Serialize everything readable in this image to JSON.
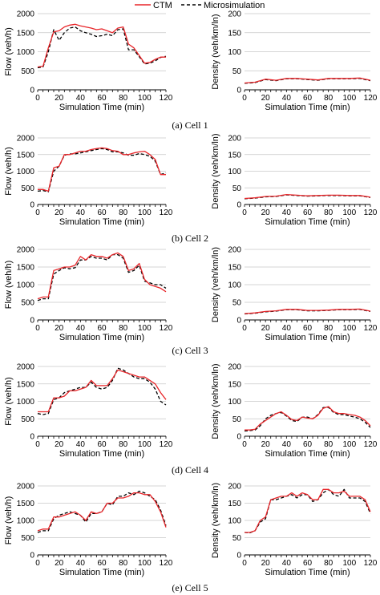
{
  "legend": [
    {
      "name": "CTM",
      "color": "#e8262a",
      "dash": "solid"
    },
    {
      "name": "Microsimulation",
      "color": "#000000",
      "dash": "dashed"
    }
  ],
  "captions": [
    "(a) Cell 1",
    "(b) Cell 2",
    "(c) Cell 3",
    "(d) Cell 4",
    "(e) Cell 5"
  ],
  "chart_data": [
    {
      "type": "line",
      "panel": "Cell 1 flow",
      "xlabel": "Simulation Time (min)",
      "ylabel": "Flow (veh/h)",
      "xlim": [
        0,
        120
      ],
      "ylim": [
        0,
        2000
      ],
      "xticks": [
        0,
        20,
        40,
        60,
        80,
        100,
        120
      ],
      "yticks": [
        0,
        500,
        1000,
        1500,
        2000
      ],
      "x": [
        0,
        5,
        10,
        15,
        20,
        25,
        30,
        35,
        40,
        45,
        50,
        55,
        60,
        65,
        70,
        75,
        80,
        85,
        90,
        95,
        100,
        105,
        110,
        115,
        120
      ],
      "series": [
        {
          "name": "CTM",
          "values": [
            600,
            620,
            1100,
            1520,
            1550,
            1650,
            1700,
            1720,
            1680,
            1650,
            1620,
            1580,
            1600,
            1550,
            1500,
            1620,
            1650,
            1200,
            1100,
            900,
            700,
            720,
            800,
            860,
            860
          ]
        },
        {
          "name": "Microsimulation",
          "values": [
            580,
            600,
            1000,
            1580,
            1300,
            1500,
            1620,
            1650,
            1550,
            1500,
            1460,
            1400,
            1420,
            1460,
            1420,
            1580,
            1600,
            1050,
            1050,
            870,
            680,
            700,
            760,
            850,
            880
          ]
        }
      ]
    },
    {
      "type": "line",
      "panel": "Cell 1 density",
      "xlabel": "Simulation Time (min)",
      "ylabel": "Density (veh/km/ln)",
      "xlim": [
        0,
        120
      ],
      "ylim": [
        0,
        200
      ],
      "xticks": [
        0,
        20,
        40,
        60,
        80,
        100,
        120
      ],
      "yticks": [
        0,
        50,
        100,
        150,
        200
      ],
      "x": [
        0,
        10,
        20,
        30,
        40,
        50,
        60,
        70,
        80,
        90,
        100,
        110,
        120
      ],
      "series": [
        {
          "name": "CTM",
          "values": [
            18,
            20,
            28,
            25,
            30,
            30,
            28,
            26,
            30,
            30,
            30,
            31,
            25
          ]
        },
        {
          "name": "Microsimulation",
          "values": [
            17,
            19,
            27,
            24,
            29,
            29,
            27,
            25,
            29,
            29,
            29,
            30,
            24
          ]
        }
      ]
    },
    {
      "type": "line",
      "panel": "Cell 2 flow",
      "xlabel": "Simulation Time (min)",
      "ylabel": "Flow (veh/h)",
      "xlim": [
        0,
        120
      ],
      "ylim": [
        0,
        2000
      ],
      "xticks": [
        0,
        20,
        40,
        60,
        80,
        100,
        120
      ],
      "yticks": [
        0,
        500,
        1000,
        1500,
        2000
      ],
      "x": [
        0,
        5,
        10,
        15,
        20,
        25,
        30,
        35,
        40,
        45,
        50,
        55,
        60,
        65,
        70,
        75,
        80,
        85,
        90,
        95,
        100,
        105,
        110,
        115,
        120
      ],
      "series": [
        {
          "name": "CTM",
          "values": [
            450,
            450,
            400,
            1100,
            1150,
            1500,
            1500,
            1550,
            1600,
            1600,
            1650,
            1680,
            1700,
            1680,
            1620,
            1600,
            1500,
            1500,
            1550,
            1580,
            1600,
            1500,
            1350,
            900,
            900
          ]
        },
        {
          "name": "Microsimulation",
          "values": [
            400,
            420,
            380,
            1000,
            1150,
            1480,
            1520,
            1520,
            1550,
            1580,
            1620,
            1650,
            1680,
            1650,
            1580,
            1580,
            1550,
            1480,
            1480,
            1530,
            1500,
            1450,
            1300,
            900,
            950
          ]
        }
      ]
    },
    {
      "type": "line",
      "panel": "Cell 2 density",
      "xlabel": "Simulation Time (min)",
      "ylabel": "Density (veh/km/ln)",
      "xlim": [
        0,
        120
      ],
      "ylim": [
        0,
        200
      ],
      "xticks": [
        0,
        20,
        40,
        60,
        80,
        100,
        120
      ],
      "yticks": [
        0,
        50,
        100,
        150,
        200
      ],
      "x": [
        0,
        10,
        20,
        30,
        40,
        50,
        60,
        70,
        80,
        90,
        100,
        110,
        120
      ],
      "series": [
        {
          "name": "CTM",
          "values": [
            18,
            20,
            24,
            25,
            30,
            28,
            26,
            27,
            28,
            28,
            27,
            27,
            22
          ]
        },
        {
          "name": "Microsimulation",
          "values": [
            17,
            19,
            23,
            24,
            29,
            27,
            25,
            26,
            27,
            27,
            26,
            26,
            21
          ]
        }
      ]
    },
    {
      "type": "line",
      "panel": "Cell 3 flow",
      "xlabel": "Simulation Time (min)",
      "ylabel": "Flow (veh/h)",
      "xlim": [
        0,
        120
      ],
      "ylim": [
        0,
        2000
      ],
      "xticks": [
        0,
        20,
        40,
        60,
        80,
        100,
        120
      ],
      "yticks": [
        0,
        500,
        1000,
        1500,
        2000
      ],
      "x": [
        0,
        5,
        10,
        15,
        20,
        25,
        30,
        35,
        40,
        45,
        50,
        55,
        60,
        65,
        70,
        75,
        80,
        85,
        90,
        95,
        100,
        105,
        110,
        115,
        120
      ],
      "series": [
        {
          "name": "CTM",
          "values": [
            600,
            650,
            650,
            1400,
            1450,
            1500,
            1500,
            1550,
            1800,
            1700,
            1850,
            1800,
            1800,
            1750,
            1850,
            1900,
            1800,
            1400,
            1450,
            1600,
            1150,
            1000,
            950,
            900,
            800
          ]
        },
        {
          "name": "Microsimulation",
          "values": [
            550,
            600,
            600,
            1300,
            1400,
            1480,
            1450,
            1480,
            1700,
            1700,
            1800,
            1750,
            1750,
            1700,
            1850,
            1850,
            1750,
            1350,
            1400,
            1550,
            1100,
            1050,
            1000,
            1000,
            900
          ]
        }
      ]
    },
    {
      "type": "line",
      "panel": "Cell 3 density",
      "xlabel": "Simulation Time (min)",
      "ylabel": "Density (veh/km/ln)",
      "xlim": [
        0,
        120
      ],
      "ylim": [
        0,
        200
      ],
      "xticks": [
        0,
        20,
        40,
        60,
        80,
        100,
        120
      ],
      "yticks": [
        0,
        50,
        100,
        150,
        200
      ],
      "x": [
        0,
        10,
        20,
        30,
        40,
        50,
        60,
        70,
        80,
        90,
        100,
        110,
        120
      ],
      "series": [
        {
          "name": "CTM",
          "values": [
            18,
            20,
            24,
            26,
            30,
            30,
            27,
            27,
            28,
            30,
            30,
            31,
            25
          ]
        },
        {
          "name": "Microsimulation",
          "values": [
            17,
            19,
            23,
            25,
            29,
            29,
            26,
            26,
            27,
            29,
            29,
            30,
            24
          ]
        }
      ]
    },
    {
      "type": "line",
      "panel": "Cell 4 flow",
      "xlabel": "Simulation Time (min)",
      "ylabel": "Flow (veh/h)",
      "xlim": [
        0,
        120
      ],
      "ylim": [
        0,
        2000
      ],
      "xticks": [
        0,
        20,
        40,
        60,
        80,
        100,
        120
      ],
      "yticks": [
        0,
        500,
        1000,
        1500,
        2000
      ],
      "x": [
        0,
        5,
        10,
        15,
        20,
        25,
        30,
        35,
        40,
        45,
        50,
        55,
        60,
        65,
        70,
        75,
        80,
        85,
        90,
        95,
        100,
        105,
        110,
        115,
        120
      ],
      "series": [
        {
          "name": "CTM",
          "values": [
            700,
            700,
            700,
            1100,
            1100,
            1150,
            1300,
            1300,
            1350,
            1400,
            1600,
            1450,
            1450,
            1450,
            1650,
            1900,
            1850,
            1800,
            1750,
            1700,
            1700,
            1600,
            1500,
            1250,
            1050
          ]
        },
        {
          "name": "Microsimulation",
          "values": [
            650,
            620,
            650,
            1050,
            1100,
            1250,
            1300,
            1350,
            1400,
            1400,
            1550,
            1400,
            1350,
            1400,
            1600,
            1950,
            1900,
            1800,
            1700,
            1650,
            1650,
            1550,
            1350,
            1000,
            900
          ]
        }
      ]
    },
    {
      "type": "line",
      "panel": "Cell 4 density",
      "xlabel": "Simulation Time (min)",
      "ylabel": "Density (veh/km/ln)",
      "xlim": [
        0,
        120
      ],
      "ylim": [
        0,
        200
      ],
      "xticks": [
        0,
        20,
        40,
        60,
        80,
        100,
        120
      ],
      "yticks": [
        0,
        50,
        100,
        150,
        200
      ],
      "x": [
        0,
        5,
        10,
        15,
        20,
        25,
        30,
        35,
        40,
        45,
        50,
        55,
        60,
        65,
        70,
        75,
        80,
        85,
        90,
        95,
        100,
        105,
        110,
        115,
        120
      ],
      "series": [
        {
          "name": "CTM",
          "values": [
            18,
            18,
            20,
            35,
            45,
            55,
            65,
            70,
            60,
            48,
            45,
            55,
            52,
            50,
            60,
            80,
            85,
            70,
            65,
            65,
            62,
            60,
            55,
            45,
            30
          ]
        },
        {
          "name": "Microsimulation",
          "values": [
            15,
            16,
            18,
            30,
            50,
            60,
            65,
            68,
            58,
            45,
            42,
            55,
            55,
            50,
            62,
            82,
            83,
            68,
            62,
            62,
            58,
            55,
            50,
            40,
            25
          ]
        }
      ]
    },
    {
      "type": "line",
      "panel": "Cell 5 flow",
      "xlabel": "Simulation Time (min)",
      "ylabel": "Flow (veh/h)",
      "xlim": [
        0,
        120
      ],
      "ylim": [
        0,
        2000
      ],
      "xticks": [
        0,
        20,
        40,
        60,
        80,
        100,
        120
      ],
      "yticks": [
        0,
        500,
        1000,
        1500,
        2000
      ],
      "x": [
        0,
        5,
        10,
        15,
        20,
        25,
        30,
        35,
        40,
        45,
        50,
        55,
        60,
        65,
        70,
        75,
        80,
        85,
        90,
        95,
        100,
        105,
        110,
        115,
        120
      ],
      "series": [
        {
          "name": "CTM",
          "values": [
            700,
            750,
            750,
            1100,
            1100,
            1150,
            1200,
            1250,
            1150,
            1000,
            1250,
            1200,
            1250,
            1500,
            1500,
            1650,
            1650,
            1700,
            1800,
            1800,
            1750,
            1750,
            1550,
            1250,
            800
          ]
        },
        {
          "name": "Microsimulation",
          "values": [
            650,
            700,
            700,
            1050,
            1150,
            1200,
            1250,
            1200,
            1150,
            950,
            1200,
            1200,
            1250,
            1500,
            1450,
            1700,
            1700,
            1800,
            1750,
            1850,
            1800,
            1700,
            1600,
            1300,
            850
          ]
        }
      ]
    },
    {
      "type": "line",
      "panel": "Cell 5 density",
      "xlabel": "Simulation Time (min)",
      "ylabel": "Density (veh/km/ln)",
      "xlim": [
        0,
        120
      ],
      "ylim": [
        0,
        200
      ],
      "xticks": [
        0,
        20,
        40,
        60,
        80,
        100,
        120
      ],
      "yticks": [
        0,
        50,
        100,
        150,
        200
      ],
      "x": [
        0,
        5,
        10,
        15,
        20,
        25,
        30,
        35,
        40,
        45,
        50,
        55,
        60,
        65,
        70,
        75,
        80,
        85,
        90,
        95,
        100,
        105,
        110,
        115,
        120
      ],
      "series": [
        {
          "name": "CTM",
          "values": [
            65,
            65,
            70,
            100,
            110,
            160,
            165,
            170,
            170,
            180,
            170,
            180,
            175,
            160,
            160,
            190,
            190,
            180,
            180,
            185,
            170,
            170,
            170,
            160,
            125
          ]
        },
        {
          "name": "Microsimulation",
          "values": [
            65,
            64,
            70,
            95,
            105,
            160,
            160,
            165,
            170,
            175,
            165,
            175,
            175,
            155,
            160,
            180,
            190,
            175,
            170,
            190,
            165,
            165,
            165,
            155,
            120
          ]
        }
      ]
    }
  ]
}
